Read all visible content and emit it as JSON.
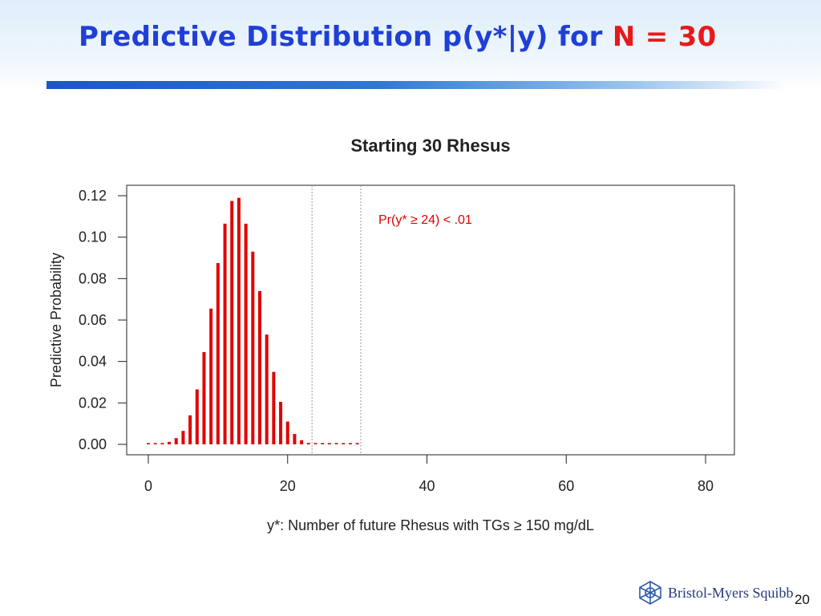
{
  "slide": {
    "title_main": "Predictive Distribution p(y*|y) for ",
    "title_accent": "N = 30",
    "logo_text": "Bristol-Myers Squibb",
    "page_number": "20"
  },
  "colors": {
    "title": "#1f3fd6",
    "accent": "#e8191b",
    "bars": "#e00000"
  },
  "chart_data": {
    "type": "bar",
    "title": "Starting 30 Rhesus",
    "xlabel": "y*: Number of future Rhesus with TGs ≥ 150 mg/dL",
    "ylabel": "Predictive Probability",
    "xlim": [
      0,
      80
    ],
    "ylim": [
      0,
      0.12
    ],
    "xticks": [
      0,
      20,
      40,
      60,
      80
    ],
    "yticks": [
      "0.00",
      "0.02",
      "0.04",
      "0.06",
      "0.08",
      "0.10",
      "0.12"
    ],
    "x": [
      0,
      1,
      2,
      3,
      4,
      5,
      6,
      7,
      8,
      9,
      10,
      11,
      12,
      13,
      14,
      15,
      16,
      17,
      18,
      19,
      20,
      21,
      22,
      23,
      24,
      25,
      26,
      27,
      28,
      29,
      30
    ],
    "values": [
      0.0,
      0.0001,
      0.0003,
      0.0012,
      0.003,
      0.0065,
      0.014,
      0.0265,
      0.0445,
      0.0655,
      0.0875,
      0.1065,
      0.1175,
      0.119,
      0.1065,
      0.093,
      0.074,
      0.053,
      0.035,
      0.0205,
      0.011,
      0.005,
      0.002,
      0.0007,
      0.0002,
      0.0001,
      0.0,
      0.0,
      0.0,
      0.0,
      0.0
    ],
    "reference_lines_x": [
      23.5,
      30.5
    ],
    "annotation": "Pr(y* ≥ 24) < .01",
    "grid": false
  }
}
